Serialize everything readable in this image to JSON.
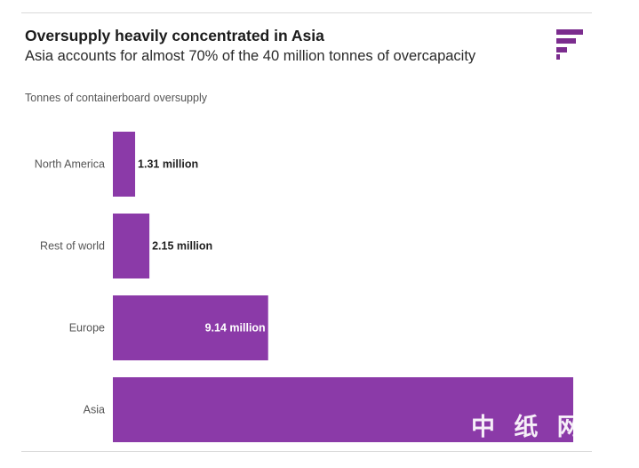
{
  "header": {
    "title": "Oversupply heavily concentrated in Asia",
    "subtitle": "Asia accounts for almost 70% of the 40 million tonnes of overcapacity",
    "caption": "Tonnes of containerboard oversupply"
  },
  "logo": {
    "icon": "brand-logo-icon",
    "color": "#7b2c8e"
  },
  "watermark": {
    "text": "中 纸 网"
  },
  "colors": {
    "bar": "#8b3aa8",
    "label_outside": "#1f1f1f",
    "label_inside": "#ffffff"
  },
  "chart_data": {
    "type": "bar",
    "orientation": "horizontal",
    "title": "Oversupply heavily concentrated in Asia",
    "subtitle": "Asia accounts for almost 70% of the 40 million tonnes of overcapacity",
    "ylabel": "Tonnes of containerboard oversupply",
    "categories": [
      "North America",
      "Rest of world",
      "Europe",
      "Asia"
    ],
    "values": [
      1.31,
      2.15,
      9.14,
      27.1
    ],
    "data_labels": [
      "1.31 million",
      "2.15 million",
      "9.14 million",
      ""
    ],
    "unit": "million tonnes",
    "xlim": [
      0,
      27.1
    ],
    "grid": false,
    "legend": "none"
  }
}
